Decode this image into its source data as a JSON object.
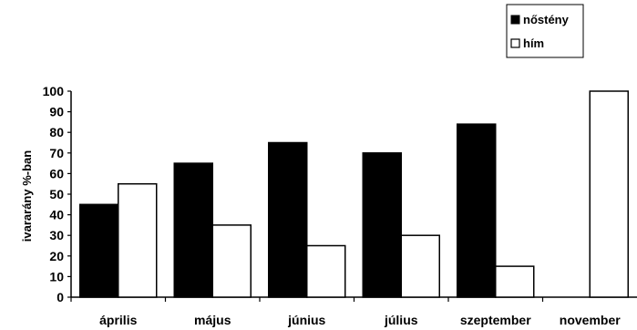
{
  "chart_data": {
    "type": "bar",
    "title": "",
    "xlabel": "",
    "ylabel": "ivararány %-ban",
    "ylim": [
      0,
      100
    ],
    "yticks": [
      0,
      10,
      20,
      30,
      40,
      50,
      60,
      70,
      80,
      90,
      100
    ],
    "categories": [
      "április",
      "május",
      "június",
      "július",
      "szeptember",
      "november"
    ],
    "series": [
      {
        "name": "nőstény",
        "color": "#000000",
        "values": [
          45,
          65,
          75,
          70,
          84,
          0
        ]
      },
      {
        "name": "hím",
        "color": "#ffffff",
        "values": [
          55,
          35,
          25,
          30,
          15,
          100
        ]
      }
    ],
    "legend_position": "top-right",
    "grid": false
  }
}
